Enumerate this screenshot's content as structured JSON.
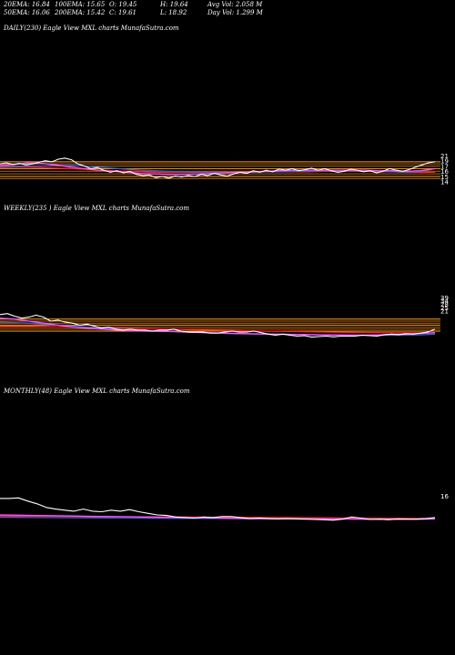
{
  "stats": {
    "row1": [
      "20EMA: 16.84",
      "100EMA: 15.65",
      "O: 19.45",
      "H: 19.64",
      "Avg Vol: 2.058 M"
    ],
    "row2": [
      "50EMA: 16.06",
      "200EMA: 15.42",
      "C: 19.61",
      "L: 18.92",
      "Day Vol: 1.299 M"
    ]
  },
  "colors": {
    "price": "#ffffff",
    "ema_blue": "#3a5fcd",
    "ema_pink": "#ff55ff",
    "ema_red": "#ff2020",
    "level": "#b8680c",
    "level_bright": "#ffa020"
  },
  "chart_data": [
    {
      "type": "line",
      "label": "DAILY(230) Eagle   View  MXL  charts MunafaSutra.com",
      "price_range": [
        13,
        22
      ],
      "series": [
        {
          "role": "price",
          "values": [
            19.2,
            19.4,
            19.1,
            19.3,
            19.0,
            19.2,
            19.5,
            19.8,
            19.6,
            20.1,
            20.3,
            20.0,
            19.2,
            18.8,
            18.3,
            18.5,
            18.0,
            17.6,
            17.9,
            17.5,
            17.8,
            17.2,
            17.0,
            17.1,
            16.6,
            16.8,
            16.5,
            16.9,
            16.7,
            17.0,
            16.8,
            17.2,
            17.0,
            17.4,
            17.1,
            16.9,
            17.3,
            17.6,
            17.4,
            17.9,
            17.6,
            18.0,
            17.7,
            18.2,
            18.0,
            18.3,
            17.9,
            18.1,
            18.4,
            18.0,
            18.3,
            17.9,
            17.6,
            17.8,
            18.2,
            18.0,
            17.7,
            17.9,
            17.5,
            17.8,
            18.3,
            18.0,
            17.8,
            18.1,
            18.6,
            19.0,
            19.4,
            19.61
          ]
        },
        {
          "role": "ema_blue",
          "values": [
            18.7,
            18.7,
            18.8,
            18.8,
            18.9,
            18.9,
            18.8,
            18.6,
            18.4,
            18.2,
            18.0,
            17.9,
            17.8,
            17.7,
            17.7,
            17.6,
            17.6,
            17.6,
            17.6,
            17.7,
            17.7,
            17.8,
            17.8,
            17.9,
            17.9,
            17.9,
            17.9,
            17.8,
            17.7,
            17.6,
            17.8,
            18.3
          ]
        },
        {
          "role": "ema_pink",
          "values": [
            18.9,
            19.1,
            19.4,
            19.3,
            19.0,
            18.6,
            18.3,
            18.0,
            17.8,
            17.6,
            17.4,
            17.3,
            17.2,
            17.2,
            17.3,
            17.4,
            17.5,
            17.6,
            17.7,
            17.8,
            17.9,
            18.0,
            18.0,
            18.0,
            18.0,
            18.0,
            18.0,
            17.9,
            17.9,
            17.8,
            17.9,
            18.3
          ]
        },
        {
          "role": "ema_red",
          "values": [
            18.5,
            18.6,
            18.6,
            18.5,
            18.4,
            18.3,
            18.2,
            18.0,
            17.9,
            17.8,
            17.7,
            17.6,
            17.6,
            17.6,
            17.6,
            17.6,
            17.6,
            17.6,
            17.7,
            17.7,
            17.7,
            17.7,
            17.7,
            17.8,
            17.8,
            17.8,
            17.8,
            17.7,
            17.7,
            17.6,
            17.6,
            17.6
          ]
        }
      ],
      "levels": [
        19.6,
        19.2,
        18.8,
        18.3,
        17.8,
        17.3,
        16.8,
        16.4
      ],
      "right_ticks": [
        "21",
        "19",
        "17",
        "16",
        "15",
        "14"
      ]
    },
    {
      "type": "line",
      "label": "WEEKLY(235                ) Eagle   View  MXL  charts MunafaSutra.com",
      "price_range": [
        10,
        60
      ],
      "series": [
        {
          "role": "price",
          "values": [
            36.5,
            37.5,
            35,
            33,
            34,
            36,
            34,
            30,
            31,
            29,
            28,
            26,
            27,
            25,
            23,
            24,
            22,
            21,
            22,
            21,
            21,
            20,
            21,
            21,
            22,
            20,
            19,
            19,
            19,
            18,
            18,
            19,
            20,
            19,
            19,
            20,
            18.5,
            17,
            16,
            17,
            16,
            15,
            15.5,
            14,
            14.5,
            15,
            14.3,
            15,
            15,
            15,
            16,
            15.5,
            15,
            16.5,
            17,
            16.5,
            17.5,
            17,
            18,
            19,
            22
          ]
        },
        {
          "role": "ema_blue",
          "values": [
            29,
            28.5,
            28,
            27,
            26,
            25,
            24,
            23,
            22,
            21,
            20.5,
            20,
            19.5,
            19,
            18.5,
            18,
            17.5,
            17.3,
            17,
            16.8,
            16.6,
            16.4,
            16.2,
            16,
            15.9,
            15.8,
            15.8,
            15.9,
            16,
            16.3,
            17
          ]
        },
        {
          "role": "ema_pink",
          "values": [
            33,
            32,
            30,
            28,
            26,
            24,
            23,
            22,
            21,
            20.5,
            20,
            19.8,
            19.5,
            19,
            18.5,
            18.2,
            17.8,
            17.5,
            17.2,
            17,
            16.8,
            16.6,
            16.4,
            16.2,
            16.1,
            16,
            16.2,
            16.6,
            17,
            17.6,
            18.5
          ]
        },
        {
          "role": "ema_red",
          "values": [
            25,
            25,
            24.8,
            24.5,
            24.2,
            24,
            23.7,
            23.4,
            23,
            22.7,
            22.4,
            22.1,
            21.8,
            21.5,
            21.2,
            20.9,
            20.6,
            20.3,
            20,
            19.8,
            19.6,
            19.4,
            19.2,
            19,
            18.8,
            18.6,
            18.5,
            18.4,
            18.3,
            18.2,
            18.1
          ]
        }
      ],
      "levels": [
        32,
        30,
        28,
        26,
        24,
        22,
        20
      ],
      "right_ticks": [
        "39",
        "34",
        "28",
        "25",
        "21"
      ]
    },
    {
      "type": "line",
      "label": "MONTHLY(48) Eagle   View  MXL  charts MunafaSutra.com",
      "price_range": [
        0,
        120
      ],
      "series": [
        {
          "role": "price",
          "values": [
            55,
            55,
            56,
            50,
            45,
            38,
            35,
            33,
            31,
            35,
            31,
            30,
            33,
            31,
            34,
            30,
            27,
            24,
            23,
            20,
            19,
            18,
            20,
            19,
            21,
            21,
            19,
            17,
            18,
            17,
            16.5,
            17,
            16.5,
            16,
            15.5,
            15,
            14,
            16,
            20,
            18,
            15.5,
            16,
            15,
            16.5,
            16,
            16,
            17,
            19
          ]
        },
        {
          "role": "ema_blue",
          "values": [
            19.5,
            19.3,
            19.1,
            18.9,
            18.7,
            18.5,
            18.3,
            18.1,
            17.9,
            17.7,
            17.5,
            17.3,
            17.1,
            16.9,
            16.7,
            16.6,
            16.5,
            16.4,
            16.3,
            16.2,
            16.1,
            16,
            16,
            16,
            16.1
          ]
        },
        {
          "role": "ema_pink",
          "values": [
            24,
            23.5,
            23,
            22.5,
            22,
            21.5,
            21,
            20.5,
            20,
            19.5,
            19,
            18.5,
            18,
            17.5,
            17.2,
            17,
            16.8,
            16.6,
            16.4,
            16.2,
            16,
            15.8,
            15.8,
            16,
            16.6
          ]
        },
        {
          "role": "ema_red",
          "values": [
            22,
            21.8,
            21.6,
            21.4,
            21.2,
            21,
            20.8,
            20.6,
            20.4,
            20.2,
            20,
            19.8,
            19.6,
            19.4,
            19.2,
            19,
            18.8,
            18.6,
            18.4,
            18.2,
            18,
            17.8,
            17.6,
            17.4,
            17.2
          ]
        }
      ],
      "levels": [],
      "right_ticks": [
        "16"
      ]
    }
  ]
}
